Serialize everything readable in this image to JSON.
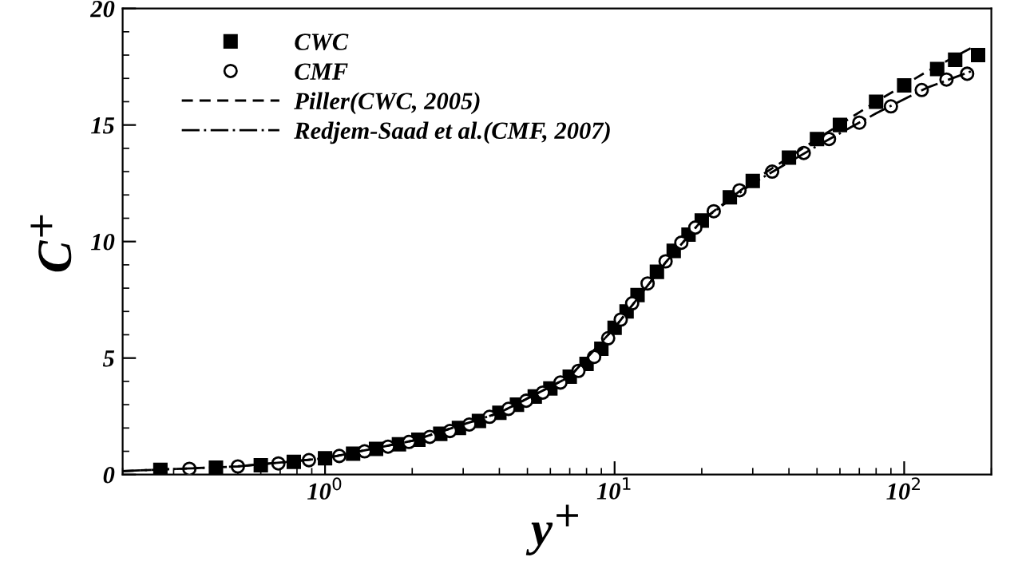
{
  "chart_data": {
    "type": "scatter",
    "xlabel": "y$^{+}$",
    "ylabel": "C$^{+}$",
    "log": "x",
    "xlim": [
      0.2,
      200
    ],
    "ylim": [
      0,
      20
    ],
    "xticks": [
      {
        "value": 1,
        "label": "10$^{0}$"
      },
      {
        "value": 10,
        "label": "10$^{1}$"
      },
      {
        "value": 100,
        "label": "10$^{2}$"
      }
    ],
    "yticks": [
      0,
      5,
      10,
      15,
      20
    ],
    "grid": false,
    "legend": "top left",
    "series": [
      {
        "name": "CWC",
        "marker": "square",
        "color": "#000000",
        "x": [
          0.27,
          0.42,
          0.6,
          0.78,
          1,
          1.25,
          1.5,
          1.8,
          2.1,
          2.5,
          2.9,
          3.4,
          4,
          4.6,
          5.3,
          6,
          7,
          8,
          9,
          10,
          11,
          12,
          14,
          16,
          18,
          20,
          25,
          30,
          40,
          50,
          60,
          80,
          100,
          130,
          150,
          180
        ],
        "values": [
          0.2,
          0.3,
          0.4,
          0.55,
          0.7,
          0.9,
          1.1,
          1.3,
          1.5,
          1.75,
          2.0,
          2.3,
          2.65,
          3.0,
          3.35,
          3.7,
          4.2,
          4.75,
          5.4,
          6.3,
          7.0,
          7.7,
          8.7,
          9.6,
          10.3,
          10.9,
          11.9,
          12.6,
          13.6,
          14.4,
          15.0,
          16.0,
          16.7,
          17.4,
          17.8,
          18.0
        ]
      },
      {
        "name": "CMF",
        "marker": "circle",
        "color": "#000000",
        "x": [
          0.34,
          0.5,
          0.69,
          0.88,
          1.12,
          1.37,
          1.65,
          1.95,
          2.3,
          2.7,
          3.15,
          3.7,
          4.3,
          4.95,
          5.65,
          6.5,
          7.5,
          8.5,
          9.5,
          10.5,
          11.5,
          13,
          15,
          17,
          19,
          22,
          27,
          35,
          45,
          55,
          70,
          90,
          115,
          140,
          165
        ],
        "values": [
          0.25,
          0.35,
          0.48,
          0.62,
          0.8,
          1.0,
          1.2,
          1.4,
          1.62,
          1.87,
          2.15,
          2.48,
          2.82,
          3.17,
          3.52,
          3.95,
          4.45,
          5.05,
          5.85,
          6.65,
          7.35,
          8.2,
          9.15,
          9.95,
          10.6,
          11.3,
          12.2,
          13.0,
          13.8,
          14.4,
          15.1,
          15.8,
          16.5,
          16.95,
          17.2
        ]
      },
      {
        "name": "Piller(CWC, 2005)",
        "type": "line",
        "line_style": "dashed",
        "color": "#000000",
        "x": [
          0.2,
          0.5,
          1,
          2,
          4,
          7,
          10,
          15,
          20,
          30,
          50,
          80,
          120,
          170
        ],
        "values": [
          0.15,
          0.35,
          0.7,
          1.45,
          2.65,
          4.2,
          6.3,
          9.1,
          10.9,
          12.6,
          14.4,
          16.0,
          17.3,
          18.3
        ]
      },
      {
        "name": "Redjem-Saad et al.(CMF, 2007)",
        "type": "line",
        "line_style": "dashdot",
        "color": "#000000",
        "x": [
          0.2,
          0.5,
          1,
          2,
          4,
          7,
          10,
          15,
          20,
          30,
          50,
          80,
          120,
          170
        ],
        "values": [
          0.15,
          0.35,
          0.7,
          1.45,
          2.65,
          4.2,
          6.3,
          9.1,
          10.9,
          12.5,
          14.1,
          15.5,
          16.6,
          17.3
        ]
      }
    ]
  }
}
